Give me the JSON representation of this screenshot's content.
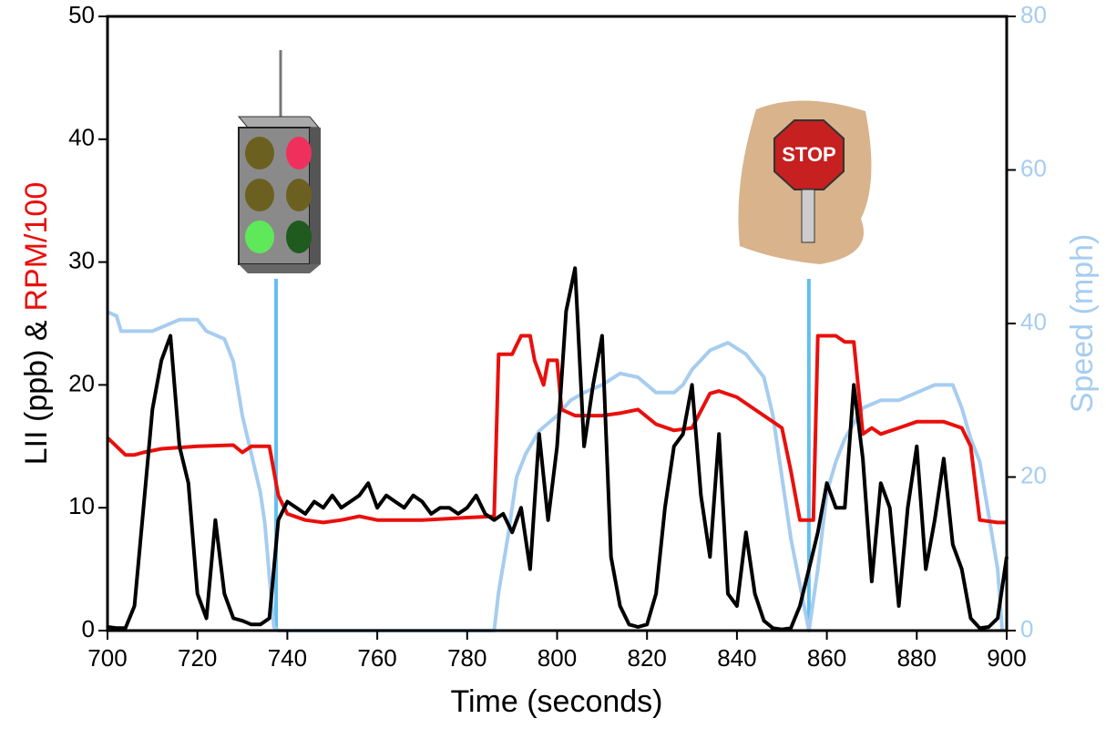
{
  "chart_data": {
    "type": "line",
    "xlabel": "Time (seconds)",
    "ylabel": [
      "LII (ppb) &",
      "RPM/100"
    ],
    "y2label": "Speed (mph)",
    "xlim": [
      700,
      900
    ],
    "xticks": [
      700,
      720,
      740,
      760,
      780,
      800,
      820,
      840,
      860,
      880,
      900
    ],
    "ylim": [
      0,
      50
    ],
    "yticks": [
      0,
      10,
      20,
      30,
      40,
      50
    ],
    "y2lim": [
      0,
      80
    ],
    "y2ticks": [
      0,
      20,
      40,
      60,
      80
    ],
    "y2color": "#a6cdf0",
    "markers_x": [
      737.5,
      856
    ],
    "marker_color": "#63bfee",
    "stop_sign_text": "STOP",
    "series": [
      {
        "name": "Speed (mph)",
        "color": "#a6cdf0",
        "axis": "y2",
        "x": [
          700,
          702,
          703,
          710,
          712,
          716,
          720,
          722,
          726,
          728,
          730,
          732,
          734,
          735,
          736,
          737,
          738,
          786,
          787,
          789,
          791,
          793,
          796,
          800,
          803,
          806,
          810,
          814,
          818,
          822,
          826,
          828,
          830,
          834,
          838,
          842,
          846,
          848,
          850,
          852,
          854,
          856,
          858,
          860,
          862,
          864,
          866,
          868,
          872,
          876,
          880,
          884,
          888,
          890,
          892,
          894,
          896,
          898,
          899
        ],
        "values": [
          41.5,
          41,
          39,
          39,
          39.5,
          40.5,
          40.5,
          39,
          38,
          35,
          28,
          23,
          18,
          14,
          7,
          0.5,
          0,
          0,
          5,
          12,
          20,
          23,
          26,
          28,
          30,
          31,
          32,
          33.5,
          33,
          31,
          31,
          32,
          34,
          36.5,
          37.5,
          36,
          33,
          28,
          20,
          12,
          6,
          0,
          8,
          18,
          22,
          25,
          27,
          29,
          30,
          30,
          31,
          32,
          32,
          29,
          25,
          22,
          15,
          8,
          0
        ]
      },
      {
        "name": "RPM/100",
        "color": "#e8100c",
        "x": [
          700,
          702,
          704,
          706,
          708,
          712,
          720,
          728,
          730,
          732,
          736,
          738,
          740,
          744,
          748,
          752,
          756,
          760,
          770,
          780,
          786,
          787,
          790,
          792,
          794,
          795,
          797,
          798,
          800,
          801,
          804,
          810,
          814,
          818,
          822,
          826,
          830,
          834,
          836,
          840,
          844,
          848,
          850,
          852,
          854,
          856,
          857,
          858,
          862,
          864,
          866,
          868,
          870,
          872,
          876,
          880,
          886,
          890,
          892,
          894,
          898,
          900
        ],
        "values": [
          15.7,
          15,
          14.3,
          14.3,
          14.5,
          14.8,
          15,
          15.1,
          14.5,
          15,
          15,
          11,
          9.5,
          9,
          8.8,
          9,
          9.3,
          9,
          9,
          9.2,
          9.3,
          22.5,
          22.5,
          24,
          24,
          22,
          20,
          22,
          22,
          18,
          17.5,
          17.5,
          17.7,
          18,
          16.8,
          16.3,
          16.5,
          19.3,
          19.5,
          19,
          18,
          17,
          16.5,
          13,
          9,
          9,
          9,
          24,
          24,
          23.5,
          23.5,
          16,
          16.5,
          16,
          16.5,
          17,
          17,
          16.5,
          15,
          9,
          8.8,
          8.8
        ]
      },
      {
        "name": "LII (ppb)",
        "color": "#000000",
        "x": [
          700,
          702,
          704,
          706,
          708,
          710,
          712,
          714,
          716,
          718,
          720,
          722,
          724,
          726,
          728,
          730,
          732,
          734,
          736,
          738,
          740,
          742,
          744,
          746,
          748,
          750,
          752,
          754,
          756,
          758,
          760,
          762,
          764,
          766,
          768,
          770,
          772,
          774,
          776,
          778,
          780,
          782,
          784,
          786,
          788,
          790,
          792,
          794,
          796,
          798,
          800,
          802,
          804,
          806,
          808,
          810,
          812,
          814,
          816,
          818,
          820,
          822,
          824,
          826,
          828,
          830,
          832,
          834,
          836,
          838,
          840,
          842,
          844,
          846,
          848,
          850,
          852,
          854,
          856,
          858,
          860,
          862,
          864,
          866,
          868,
          870,
          872,
          874,
          876,
          878,
          880,
          882,
          884,
          886,
          888,
          890,
          892,
          894,
          896,
          898,
          900
        ],
        "values": [
          0.3,
          0.2,
          0.2,
          2,
          10,
          18,
          22,
          24,
          15,
          12,
          3,
          1,
          9,
          3,
          1,
          0.8,
          0.5,
          0.5,
          1,
          9,
          10.5,
          10,
          9.5,
          10.5,
          10,
          11,
          10,
          10.5,
          11,
          12,
          10,
          11,
          10.5,
          10,
          11,
          10.5,
          9.5,
          10,
          10,
          9.5,
          10,
          11,
          9.5,
          9,
          9.5,
          8,
          10,
          5,
          16,
          9,
          15,
          26,
          29.5,
          15,
          20,
          24,
          6,
          2,
          0.5,
          0.3,
          0.5,
          3,
          10,
          15,
          16,
          20,
          11,
          6,
          16,
          3,
          2,
          8,
          3,
          0.8,
          0.2,
          0.1,
          0.2,
          2,
          5,
          8,
          12,
          10,
          10,
          20,
          14,
          4,
          12,
          10,
          2,
          10,
          15,
          5,
          9,
          14,
          7,
          5,
          1,
          0.2,
          0.3,
          1,
          6
        ]
      }
    ]
  }
}
